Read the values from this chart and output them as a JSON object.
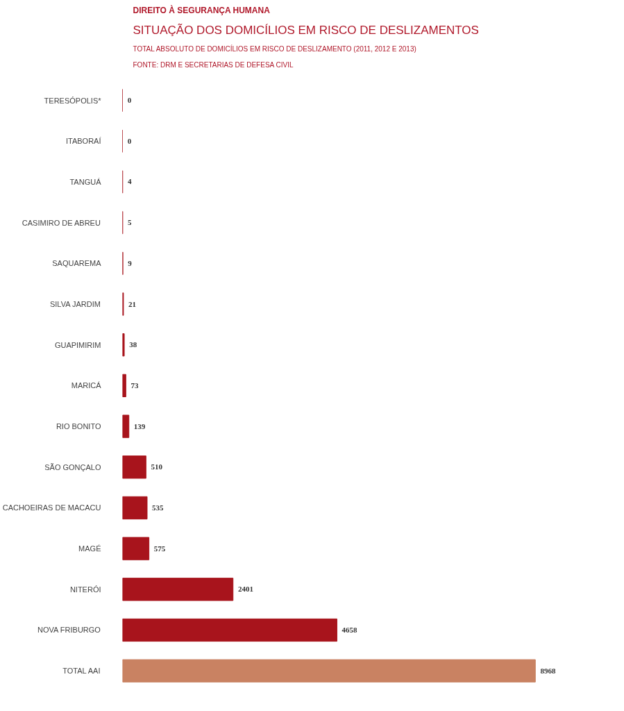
{
  "chart_data": {
    "type": "bar",
    "orientation": "horizontal",
    "title": "DIREITO À SEGURANÇA HUMANA",
    "subtitle": "SITUAÇÃO DOS DOMICÍLIOS EM RISCO DE DESLIZAMENTOS",
    "annotations": [
      "TOTAL ABSOLUTO DE DOMICÍLIOS EM RISCO DE DESLIZAMENTO (2011, 2012 E  2013)",
      "FONTE: DRM E SECRETARIAS DE DEFESA CIVIL"
    ],
    "categories": [
      "TERESÓPOLIS*",
      "ITABORAÍ",
      "TANGUÁ",
      "CASIMIRO DE ABREU",
      "SAQUAREMA",
      "SILVA JARDIM",
      "GUAPIMIRIM",
      "MARICÁ",
      "RIO BONITO",
      "SÃO GONÇALO",
      "CACHOEIRAS DE MACACU",
      "MAGÉ",
      "NITERÓI",
      "NOVA FRIBURGO",
      "TOTAL AAI"
    ],
    "values": [
      0,
      0,
      4,
      5,
      9,
      21,
      38,
      73,
      139,
      510,
      535,
      575,
      2401,
      4658,
      8968
    ],
    "colors": [
      "#a8141c",
      "#a8141c",
      "#a8141c",
      "#a8141c",
      "#a8141c",
      "#a8141c",
      "#a8141c",
      "#a8141c",
      "#a8141c",
      "#a8141c",
      "#a8141c",
      "#a8141c",
      "#a8141c",
      "#a8141c",
      "#c98262"
    ],
    "data_labels": true,
    "grid": false
  }
}
